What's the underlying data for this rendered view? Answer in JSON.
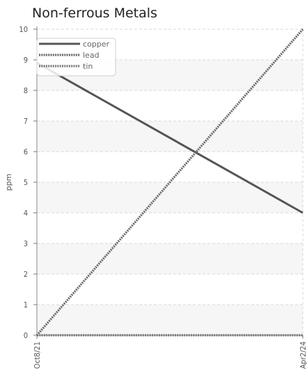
{
  "chart_data": {
    "type": "line",
    "title": "Non-ferrous Metals",
    "xlabel": "",
    "ylabel": "ppm",
    "x": [
      "Oct8/21",
      "Apr2/24"
    ],
    "ylim": [
      0,
      10
    ],
    "yticks": [
      0,
      1,
      2,
      3,
      4,
      5,
      6,
      7,
      8,
      9,
      10
    ],
    "grid": true,
    "legend_position": "top-left",
    "series": [
      {
        "name": "copper",
        "values": [
          8.9,
          4.0
        ],
        "color": "#555555",
        "style": "solid"
      },
      {
        "name": "lead",
        "values": [
          0.0,
          10.0
        ],
        "color": "#666666",
        "style": "dotted"
      },
      {
        "name": "tin",
        "values": [
          0.0,
          0.0
        ],
        "color": "#777777",
        "style": "dotted"
      }
    ]
  }
}
